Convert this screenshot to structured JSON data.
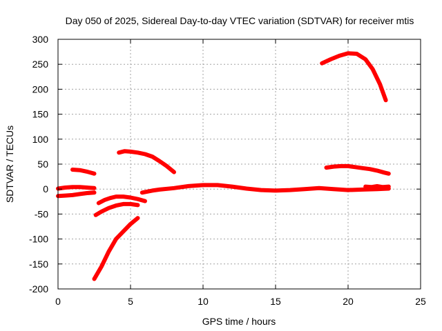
{
  "chart_data": {
    "type": "line",
    "title": "Day 050 of 2025, Sidereal Day-to-day VTEC variation (SDTVAR) for receiver mtis",
    "xlabel": "GPS time / hours",
    "ylabel": "SDTVAR / TECUs",
    "xlim": [
      0,
      25
    ],
    "ylim": [
      -200,
      300
    ],
    "xticks": [
      "0",
      "5",
      "10",
      "15",
      "20",
      "25"
    ],
    "yticks": [
      "-200",
      "-150",
      "-100",
      "-50",
      "0",
      "50",
      "100",
      "150",
      "200",
      "250",
      "300"
    ],
    "grid": true,
    "legend": "none",
    "color": "#ff0000",
    "series": [
      {
        "x": [
          0.0,
          0.5,
          1.0,
          1.5,
          2.0,
          2.5
        ],
        "y": [
          1,
          3,
          4,
          4,
          3,
          2
        ]
      },
      {
        "x": [
          0.0,
          0.5,
          1.0,
          1.5,
          2.0,
          2.5
        ],
        "y": [
          -14,
          -13,
          -12,
          -10,
          -8,
          -7
        ]
      },
      {
        "x": [
          1.0,
          1.5,
          2.0,
          2.5
        ],
        "y": [
          39,
          38,
          35,
          31
        ]
      },
      {
        "x": [
          2.5,
          3.0,
          3.5,
          4.0,
          4.5,
          5.0,
          5.5
        ],
        "y": [
          -180,
          -155,
          -125,
          -100,
          -85,
          -70,
          -58
        ]
      },
      {
        "x": [
          2.6,
          3.0,
          3.5,
          4.0,
          4.5,
          5.0,
          5.5
        ],
        "y": [
          -52,
          -45,
          -38,
          -33,
          -30,
          -30,
          -32
        ]
      },
      {
        "x": [
          2.8,
          3.2,
          3.6,
          4.0,
          4.5,
          5.0,
          5.5,
          6.0
        ],
        "y": [
          -28,
          -22,
          -18,
          -15,
          -15,
          -17,
          -20,
          -24
        ]
      },
      {
        "x": [
          4.2,
          4.6,
          5.0,
          5.5,
          6.0,
          6.5,
          7.0,
          7.5,
          8.0
        ],
        "y": [
          73,
          76,
          75,
          73,
          70,
          65,
          56,
          46,
          34
        ]
      },
      {
        "x": [
          5.8,
          6.5,
          7.0,
          8.0,
          9.0,
          10.0,
          11.0,
          12.0,
          13.0,
          14.0,
          15.0,
          16.0,
          17.0,
          18.0,
          19.0,
          20.0,
          21.0,
          22.0,
          22.8
        ],
        "y": [
          -7,
          -3,
          -1,
          2,
          6,
          8,
          8,
          5,
          1,
          -2,
          -3,
          -2,
          0,
          2,
          0,
          -2,
          -1,
          0,
          1
        ]
      },
      {
        "x": [
          18.2,
          18.8,
          19.4,
          20.0,
          20.6,
          21.2,
          21.7,
          22.2,
          22.6
        ],
        "y": [
          252,
          260,
          267,
          272,
          271,
          260,
          240,
          210,
          178
        ]
      },
      {
        "x": [
          18.5,
          19.0,
          19.5,
          20.0,
          20.5,
          21.0,
          21.5,
          22.0,
          22.5,
          22.8
        ],
        "y": [
          43,
          45,
          46,
          46,
          44,
          42,
          40,
          37,
          33,
          31
        ]
      },
      {
        "x": [
          21.2,
          21.6,
          22.0,
          22.4,
          22.8
        ],
        "y": [
          5,
          4,
          6,
          4,
          5
        ]
      }
    ]
  }
}
